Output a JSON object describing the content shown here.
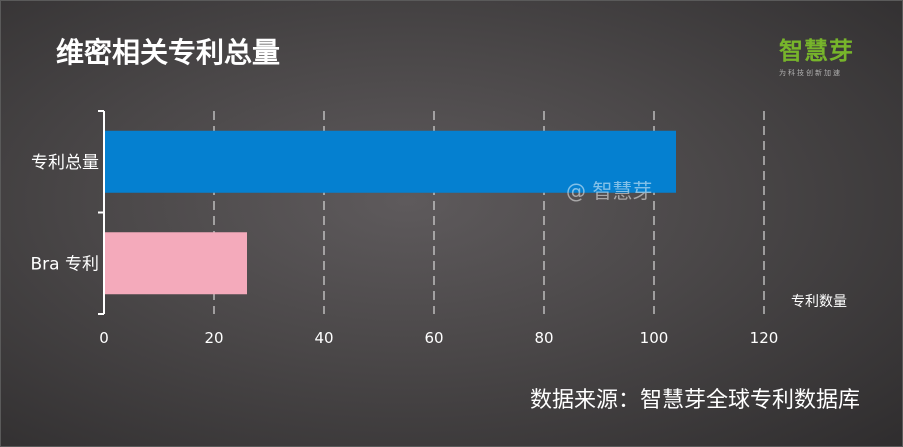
{
  "title": "维密相关专利总量",
  "logo": {
    "name": "智慧芽",
    "tagline": "为科技创新加速"
  },
  "watermark": "@ 智慧芽",
  "source": "数据来源：智慧芽全球专利数据库",
  "colors": {
    "bar1": "#0580d0",
    "bar2": "#f4aabb",
    "text": "#ffffff",
    "logo": "#77b52b"
  },
  "chart_data": {
    "type": "bar",
    "orientation": "horizontal",
    "categories": [
      "专利总量",
      "Bra 专利"
    ],
    "values": [
      104,
      26
    ],
    "xlabel": "专利数量",
    "ylabel": "",
    "xlim": [
      0,
      120
    ],
    "xticks": [
      0,
      20,
      40,
      60,
      80,
      100,
      120
    ],
    "grid": "vertical dashed",
    "legend": "none"
  }
}
